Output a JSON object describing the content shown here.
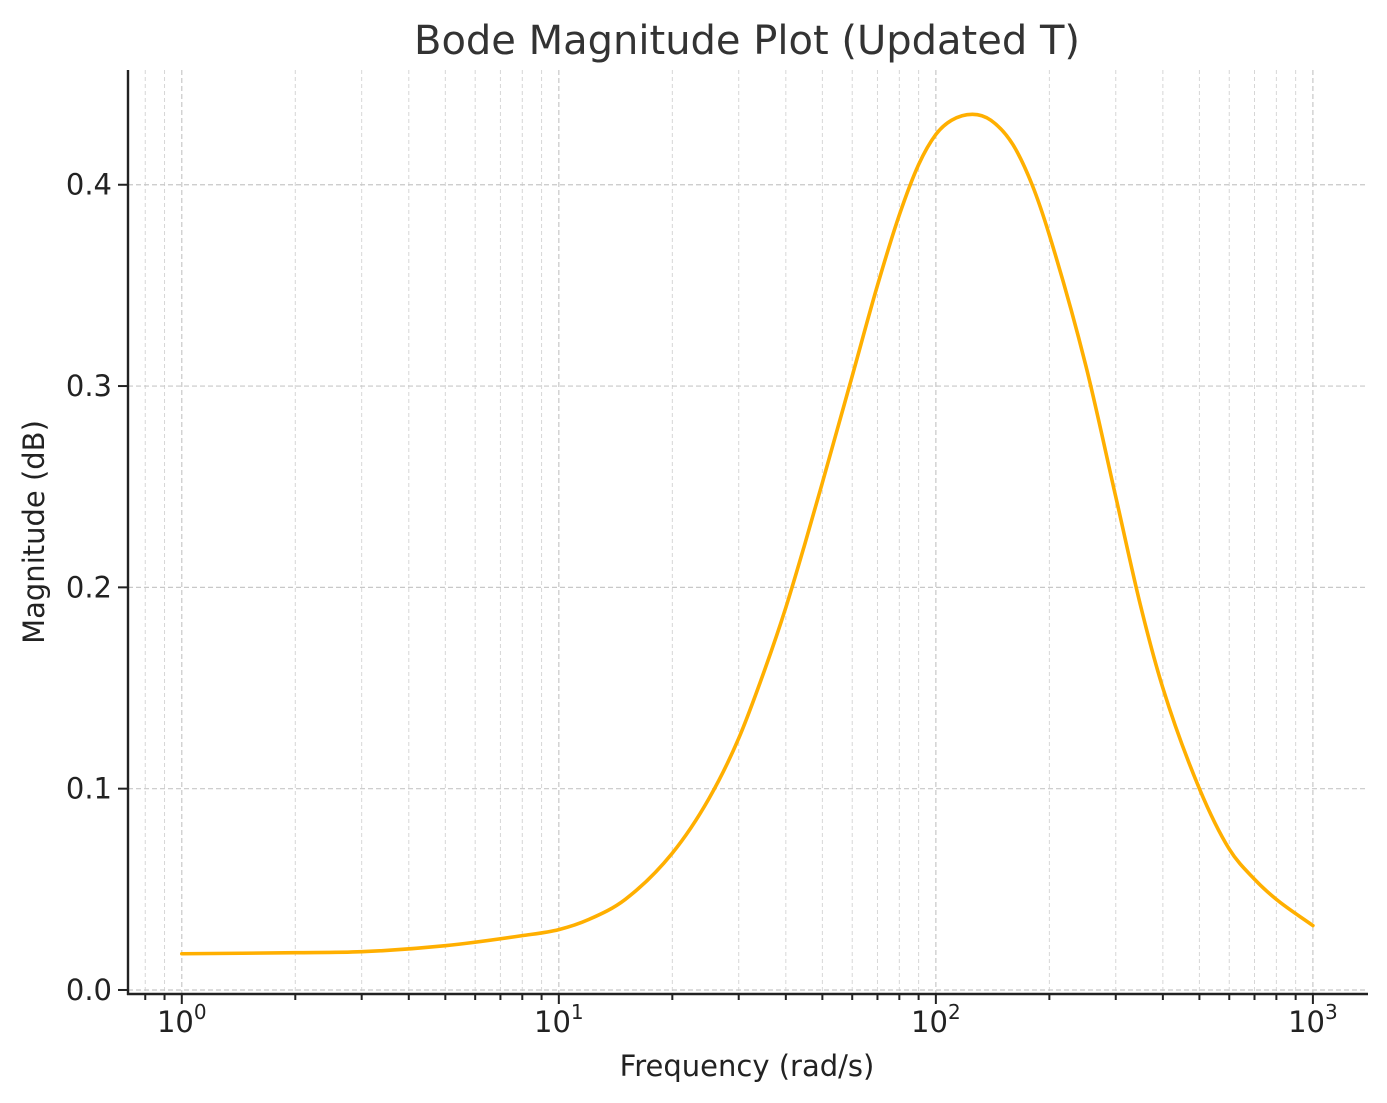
{
  "chart_data": {
    "type": "line",
    "title": "Bode Magnitude Plot (Updated T)",
    "xlabel": "Frequency (rad/s)",
    "ylabel": "Magnitude (dB)",
    "x_scale": "log",
    "xlim": [
      0.72,
      1400
    ],
    "ylim": [
      -0.002,
      0.457
    ],
    "x_ticks": [
      {
        "value": 1,
        "base": "10",
        "exp": "0"
      },
      {
        "value": 10,
        "base": "10",
        "exp": "1"
      },
      {
        "value": 100,
        "base": "10",
        "exp": "2"
      },
      {
        "value": 1000,
        "base": "10",
        "exp": "3"
      }
    ],
    "y_ticks": [
      {
        "value": 0.0,
        "label": "0.0"
      },
      {
        "value": 0.1,
        "label": "0.1"
      },
      {
        "value": 0.2,
        "label": "0.2"
      },
      {
        "value": 0.3,
        "label": "0.3"
      },
      {
        "value": 0.4,
        "label": "0.4"
      }
    ],
    "grid": true,
    "series": [
      {
        "color": "#FFAF00",
        "x": [
          1,
          2,
          3,
          5,
          8,
          10,
          12,
          15,
          20,
          25,
          30,
          35,
          40,
          45,
          50,
          60,
          70,
          80,
          90,
          100,
          110,
          125,
          140,
          160,
          180,
          200,
          250,
          300,
          350,
          400,
          500,
          600,
          700,
          800,
          1000
        ],
        "y": [
          0.018,
          0.0185,
          0.019,
          0.022,
          0.027,
          0.03,
          0.035,
          0.045,
          0.068,
          0.095,
          0.125,
          0.158,
          0.19,
          0.222,
          0.252,
          0.305,
          0.35,
          0.385,
          0.41,
          0.425,
          0.432,
          0.435,
          0.432,
          0.42,
          0.4,
          0.375,
          0.31,
          0.245,
          0.19,
          0.15,
          0.1,
          0.07,
          0.055,
          0.045,
          0.032
        ]
      }
    ]
  }
}
